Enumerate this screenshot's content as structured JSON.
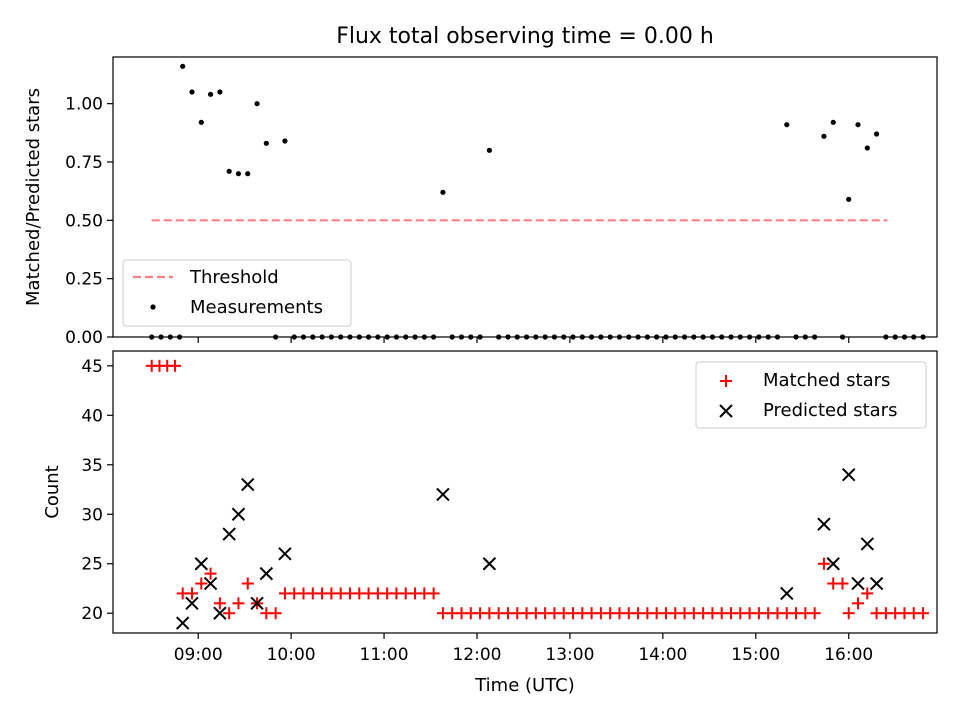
{
  "chart_data": [
    {
      "type": "scatter",
      "title": "Flux total observing time = 0.00 h",
      "xlabel": "",
      "ylabel": "Matched/Predicted stars",
      "ylim": [
        0,
        1.2
      ],
      "yticks": [
        "0.00",
        "0.25",
        "0.50",
        "0.75",
        "1.00"
      ],
      "xlim": [
        "08:05",
        "16:57"
      ],
      "legend_position": "lower-left",
      "threshold": {
        "name": "Threshold",
        "value": 0.5,
        "x_from": "08:30",
        "x_to": "16:25",
        "color": "#ff8080",
        "style": "dashed"
      },
      "series": [
        {
          "name": "Measurements",
          "color": "#000000",
          "points": [
            [
              "08:30",
              0
            ],
            [
              "08:36",
              0
            ],
            [
              "08:42",
              0
            ],
            [
              "08:48",
              0
            ],
            [
              "08:50",
              1.16
            ],
            [
              "08:56",
              1.05
            ],
            [
              "09:02",
              0.92
            ],
            [
              "09:08",
              1.04
            ],
            [
              "09:14",
              1.05
            ],
            [
              "09:20",
              0.71
            ],
            [
              "09:26",
              0.7
            ],
            [
              "09:32",
              0.7
            ],
            [
              "09:38",
              1.0
            ],
            [
              "09:44",
              0.83
            ],
            [
              "09:50",
              0
            ],
            [
              "09:56",
              0.84
            ],
            [
              "10:02",
              0
            ],
            [
              "10:08",
              0
            ],
            [
              "10:14",
              0
            ],
            [
              "10:20",
              0
            ],
            [
              "10:26",
              0
            ],
            [
              "10:32",
              0
            ],
            [
              "10:38",
              0
            ],
            [
              "10:44",
              0
            ],
            [
              "10:50",
              0
            ],
            [
              "10:56",
              0
            ],
            [
              "11:02",
              0
            ],
            [
              "11:08",
              0
            ],
            [
              "11:14",
              0
            ],
            [
              "11:20",
              0
            ],
            [
              "11:26",
              0
            ],
            [
              "11:32",
              0
            ],
            [
              "11:38",
              0.62
            ],
            [
              "11:44",
              0
            ],
            [
              "11:50",
              0
            ],
            [
              "11:56",
              0
            ],
            [
              "12:02",
              0
            ],
            [
              "12:08",
              0.8
            ],
            [
              "12:14",
              0
            ],
            [
              "12:20",
              0
            ],
            [
              "12:26",
              0
            ],
            [
              "12:32",
              0
            ],
            [
              "12:38",
              0
            ],
            [
              "12:44",
              0
            ],
            [
              "12:50",
              0
            ],
            [
              "12:56",
              0
            ],
            [
              "13:02",
              0
            ],
            [
              "13:08",
              0
            ],
            [
              "13:14",
              0
            ],
            [
              "13:20",
              0
            ],
            [
              "13:26",
              0
            ],
            [
              "13:32",
              0
            ],
            [
              "13:38",
              0
            ],
            [
              "13:44",
              0
            ],
            [
              "13:50",
              0
            ],
            [
              "13:56",
              0
            ],
            [
              "14:02",
              0
            ],
            [
              "14:08",
              0
            ],
            [
              "14:14",
              0
            ],
            [
              "14:20",
              0
            ],
            [
              "14:26",
              0
            ],
            [
              "14:32",
              0
            ],
            [
              "14:38",
              0
            ],
            [
              "14:44",
              0
            ],
            [
              "14:50",
              0
            ],
            [
              "14:56",
              0
            ],
            [
              "15:02",
              0
            ],
            [
              "15:08",
              0
            ],
            [
              "15:14",
              0
            ],
            [
              "15:20",
              0.91
            ],
            [
              "15:26",
              0
            ],
            [
              "15:32",
              0
            ],
            [
              "15:38",
              0
            ],
            [
              "15:44",
              0.86
            ],
            [
              "15:50",
              0.92
            ],
            [
              "15:56",
              0
            ],
            [
              "16:00",
              0.59
            ],
            [
              "16:06",
              0.91
            ],
            [
              "16:12",
              0.81
            ],
            [
              "16:18",
              0.87
            ],
            [
              "16:24",
              0
            ],
            [
              "16:30",
              0
            ],
            [
              "16:36",
              0
            ],
            [
              "16:42",
              0
            ],
            [
              "16:48",
              0
            ]
          ]
        }
      ]
    },
    {
      "type": "scatter",
      "title": "",
      "xlabel": "Time (UTC)",
      "ylabel": "Count",
      "ylim": [
        18,
        46.5
      ],
      "yticks": [
        "20",
        "25",
        "30",
        "35",
        "40",
        "45"
      ],
      "xlim": [
        "08:05",
        "16:57"
      ],
      "xticks": [
        "09:00",
        "10:00",
        "11:00",
        "12:00",
        "13:00",
        "14:00",
        "15:00",
        "16:00"
      ],
      "legend_position": "top-right",
      "series": [
        {
          "name": "Matched stars",
          "marker": "plus",
          "color": "#ff0000",
          "points": [
            [
              "08:30",
              45
            ],
            [
              "08:35",
              45
            ],
            [
              "08:40",
              45
            ],
            [
              "08:45",
              45
            ],
            [
              "08:50",
              22
            ],
            [
              "08:56",
              22
            ],
            [
              "09:02",
              23
            ],
            [
              "09:08",
              24
            ],
            [
              "09:14",
              21
            ],
            [
              "09:20",
              20
            ],
            [
              "09:26",
              21
            ],
            [
              "09:32",
              23
            ],
            [
              "09:38",
              21
            ],
            [
              "09:44",
              20
            ],
            [
              "09:50",
              20
            ],
            [
              "09:56",
              22
            ],
            [
              "10:02",
              22
            ],
            [
              "10:08",
              22
            ],
            [
              "10:14",
              22
            ],
            [
              "10:20",
              22
            ],
            [
              "10:26",
              22
            ],
            [
              "10:32",
              22
            ],
            [
              "10:38",
              22
            ],
            [
              "10:44",
              22
            ],
            [
              "10:50",
              22
            ],
            [
              "10:56",
              22
            ],
            [
              "11:02",
              22
            ],
            [
              "11:08",
              22
            ],
            [
              "11:14",
              22
            ],
            [
              "11:20",
              22
            ],
            [
              "11:26",
              22
            ],
            [
              "11:32",
              22
            ],
            [
              "11:38",
              20
            ],
            [
              "11:44",
              20
            ],
            [
              "11:50",
              20
            ],
            [
              "11:56",
              20
            ],
            [
              "12:02",
              20
            ],
            [
              "12:08",
              20
            ],
            [
              "12:14",
              20
            ],
            [
              "12:20",
              20
            ],
            [
              "12:26",
              20
            ],
            [
              "12:32",
              20
            ],
            [
              "12:38",
              20
            ],
            [
              "12:44",
              20
            ],
            [
              "12:50",
              20
            ],
            [
              "12:56",
              20
            ],
            [
              "13:02",
              20
            ],
            [
              "13:08",
              20
            ],
            [
              "13:14",
              20
            ],
            [
              "13:20",
              20
            ],
            [
              "13:26",
              20
            ],
            [
              "13:32",
              20
            ],
            [
              "13:38",
              20
            ],
            [
              "13:44",
              20
            ],
            [
              "13:50",
              20
            ],
            [
              "13:56",
              20
            ],
            [
              "14:02",
              20
            ],
            [
              "14:08",
              20
            ],
            [
              "14:14",
              20
            ],
            [
              "14:20",
              20
            ],
            [
              "14:26",
              20
            ],
            [
              "14:32",
              20
            ],
            [
              "14:38",
              20
            ],
            [
              "14:44",
              20
            ],
            [
              "14:50",
              20
            ],
            [
              "14:56",
              20
            ],
            [
              "15:02",
              20
            ],
            [
              "15:08",
              20
            ],
            [
              "15:14",
              20
            ],
            [
              "15:20",
              20
            ],
            [
              "15:26",
              20
            ],
            [
              "15:32",
              20
            ],
            [
              "15:38",
              20
            ],
            [
              "15:44",
              25
            ],
            [
              "15:50",
              23
            ],
            [
              "15:56",
              23
            ],
            [
              "16:00",
              20
            ],
            [
              "16:06",
              21
            ],
            [
              "16:12",
              22
            ],
            [
              "16:18",
              20
            ],
            [
              "16:24",
              20
            ],
            [
              "16:30",
              20
            ],
            [
              "16:36",
              20
            ],
            [
              "16:42",
              20
            ],
            [
              "16:48",
              20
            ]
          ]
        },
        {
          "name": "Predicted stars",
          "marker": "x",
          "color": "#000000",
          "points": [
            [
              "08:50",
              19
            ],
            [
              "08:56",
              21
            ],
            [
              "09:02",
              25
            ],
            [
              "09:08",
              23
            ],
            [
              "09:14",
              20
            ],
            [
              "09:20",
              28
            ],
            [
              "09:26",
              30
            ],
            [
              "09:32",
              33
            ],
            [
              "09:38",
              21
            ],
            [
              "09:44",
              24
            ],
            [
              "09:56",
              26
            ],
            [
              "11:38",
              32
            ],
            [
              "12:08",
              25
            ],
            [
              "15:20",
              22
            ],
            [
              "15:44",
              29
            ],
            [
              "15:50",
              25
            ],
            [
              "16:00",
              34
            ],
            [
              "16:06",
              23
            ],
            [
              "16:12",
              27
            ],
            [
              "16:18",
              23
            ]
          ]
        }
      ]
    }
  ]
}
